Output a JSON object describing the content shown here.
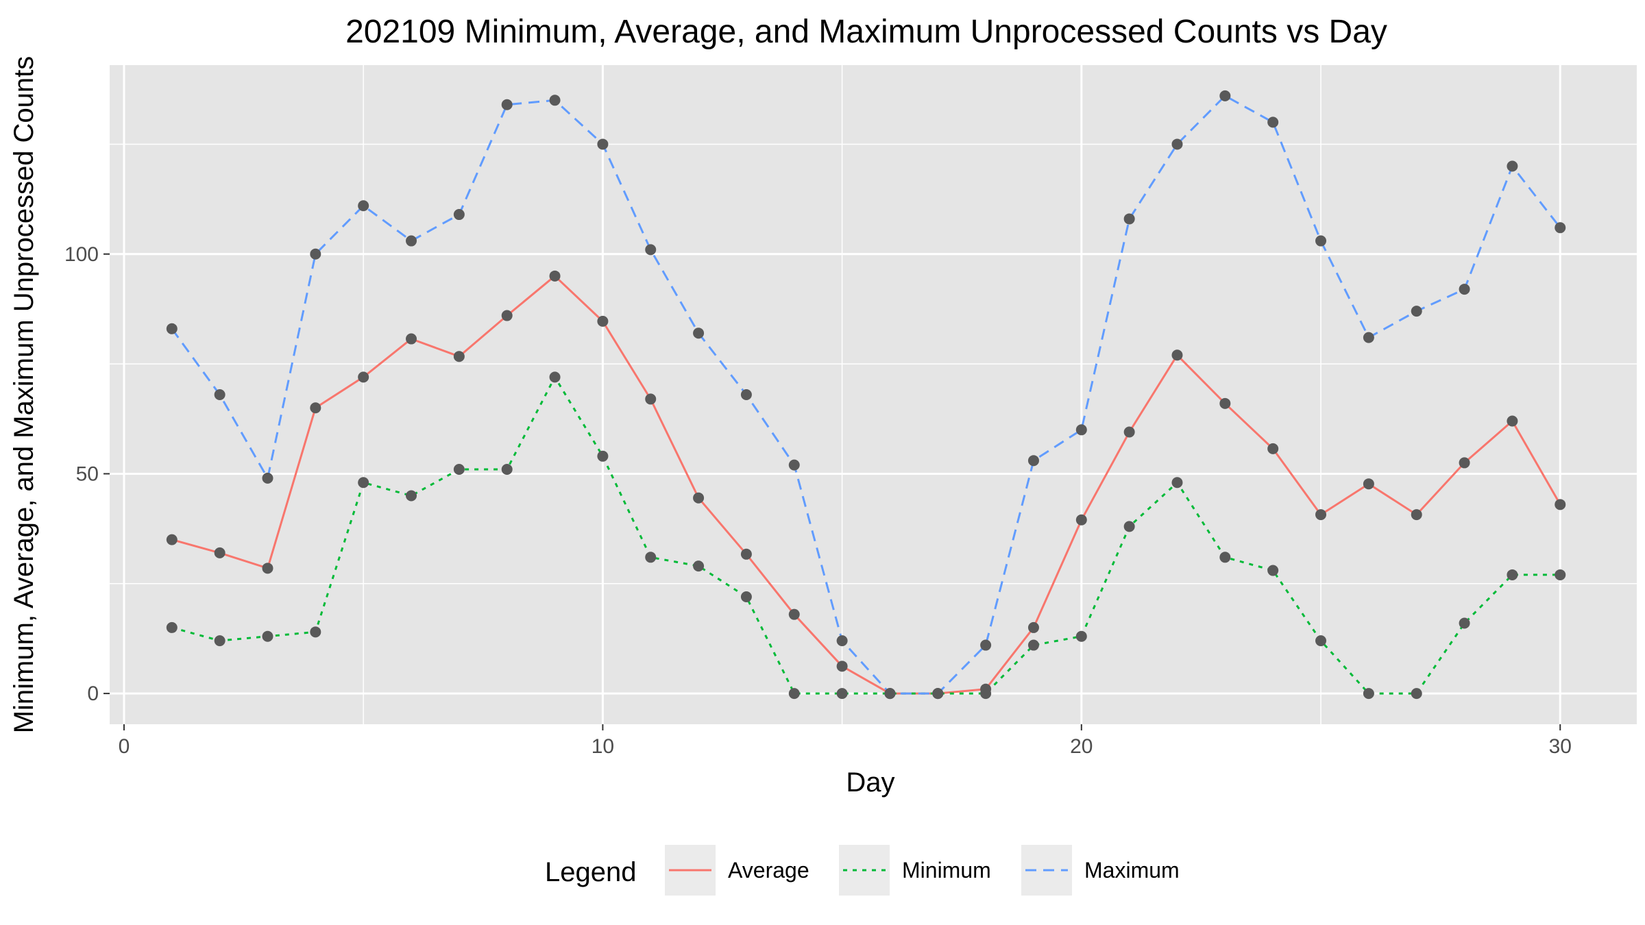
{
  "chart_data": {
    "type": "line",
    "title": "202109 Minimum, Average, and Maximum Unprocessed Counts vs Day",
    "xlabel": "Day",
    "ylabel": "Minimum, Average, and Maximum Unprocessed Counts",
    "xlim": [
      -0.3,
      31.6
    ],
    "ylim": [
      -7,
      143
    ],
    "x_ticks": [
      0,
      10,
      20,
      30
    ],
    "x_tick_labels": [
      "0",
      "10",
      "20",
      "30"
    ],
    "x_minor_ticks": [
      5,
      15,
      25
    ],
    "y_ticks": [
      0,
      50,
      100
    ],
    "y_tick_labels": [
      "0",
      "50",
      "100"
    ],
    "y_minor_ticks": [
      25,
      75,
      125
    ],
    "grid": true,
    "panel_background": "#e5e5e5",
    "grid_color": "#ffffff",
    "point_color": "#595959",
    "legend": {
      "title": "Legend",
      "position": "bottom",
      "key_background": "#ebebeb"
    },
    "x": [
      1,
      2,
      3,
      4,
      5,
      6,
      7,
      8,
      9,
      10,
      11,
      12,
      13,
      14,
      15,
      16,
      17,
      18,
      19,
      20,
      21,
      22,
      23,
      24,
      25,
      26,
      27,
      28,
      29,
      30
    ],
    "series": [
      {
        "name": "Average",
        "color": "#f8766d",
        "dash": "solid",
        "values": [
          35,
          32,
          28.5,
          65,
          72,
          80.7,
          76.7,
          86,
          95,
          84.7,
          67,
          44.5,
          31.7,
          18,
          6.2,
          0,
          0,
          1,
          15,
          39.5,
          59.5,
          77,
          66,
          55.7,
          40.7,
          47.7,
          40.7,
          52.5,
          62,
          43
        ]
      },
      {
        "name": "Minimum",
        "color": "#00ba38",
        "dash": "dotted",
        "values": [
          15,
          12,
          13,
          14,
          48,
          45,
          51,
          51,
          72,
          54,
          31,
          29,
          22,
          0,
          0,
          0,
          0,
          0,
          11,
          13,
          38,
          48,
          31,
          28,
          12,
          0,
          0,
          16,
          27,
          27
        ]
      },
      {
        "name": "Maximum",
        "color": "#619cff",
        "dash": "dashed",
        "values": [
          83,
          68,
          49,
          100,
          111,
          103,
          109,
          134,
          135,
          125,
          101,
          82,
          68,
          52,
          12,
          0,
          0,
          11,
          53,
          60,
          108,
          125,
          136,
          130,
          103,
          81,
          87,
          92,
          120,
          106
        ]
      }
    ]
  }
}
